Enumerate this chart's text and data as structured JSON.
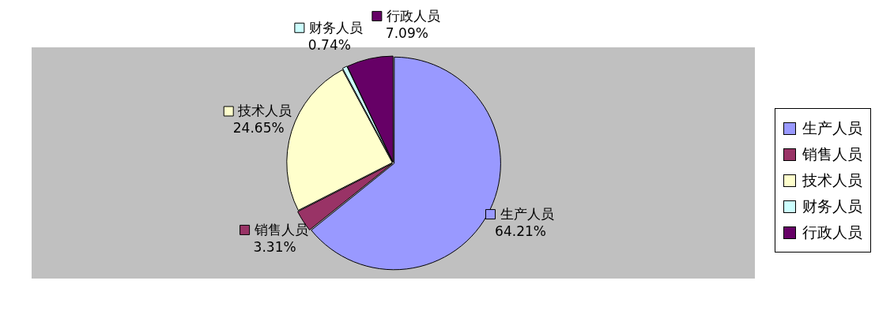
{
  "chart_data": {
    "type": "pie",
    "categories": [
      "生产人员",
      "销售人员",
      "技术人员",
      "财务人员",
      "行政人员"
    ],
    "values": [
      64.21,
      3.31,
      24.65,
      0.74,
      7.09
    ],
    "value_labels": [
      "64.21%",
      "3.31%",
      "24.65%",
      "0.74%",
      "7.09%"
    ],
    "colors": [
      "#9999ff",
      "#993366",
      "#ffffcc",
      "#ccffff",
      "#660066"
    ],
    "legend": "right"
  }
}
